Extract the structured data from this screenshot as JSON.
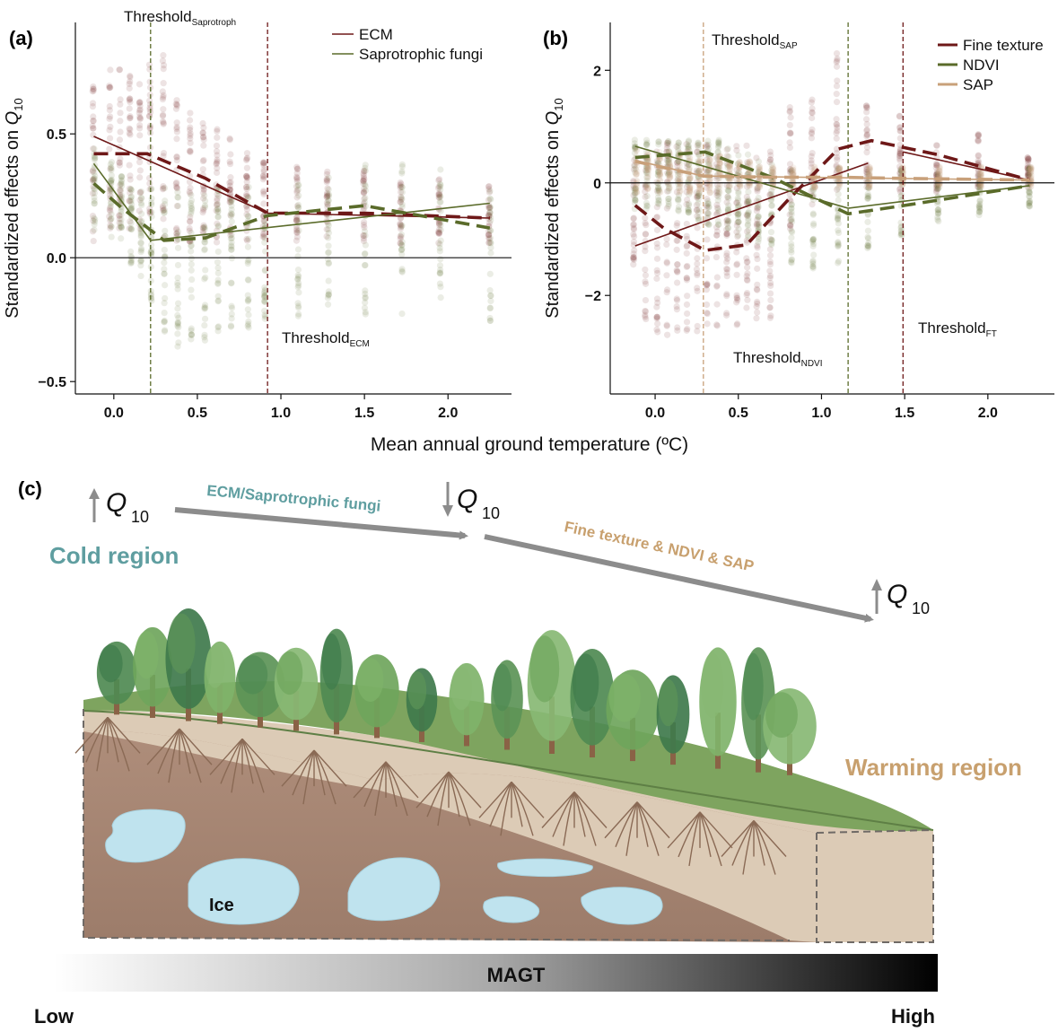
{
  "colors": {
    "ecm": "#6e1818",
    "sap_fungi": "#5a6b2a",
    "fine_texture": "#6e1818",
    "ndvi": "#5a6b2a",
    "sap": "#c8a07a",
    "teal_text": "#5f9ea0",
    "tan_text": "#c8a06e",
    "arrow_gray": "#8c8c8c",
    "soil_brown": "#a98a77",
    "topsoil": "#dccbb6",
    "ice": "#bfe3ee",
    "grass": "#79a05e"
  },
  "shared": {
    "xlabel": "Mean annual ground temperature (ºC)"
  },
  "chart_data": [
    {
      "panel": "(a)",
      "type": "scatter",
      "ylabel_main": "Standardized effects on ",
      "ylabel_q": "Q",
      "ylabel_sub": "10",
      "xlim": [
        -0.23,
        2.38
      ],
      "ylim": [
        -0.55,
        0.95
      ],
      "xticks": [
        "0.0",
        "0.5",
        "1.0",
        "1.5",
        "2.0"
      ],
      "xtick_values": [
        0,
        0.5,
        1.0,
        1.5,
        2.0
      ],
      "yticks": [
        "0.5",
        "0.0",
        "−0.5"
      ],
      "ytick_values": [
        0.5,
        0,
        -0.5
      ],
      "legend": [
        {
          "label": "ECM",
          "color_key": "ecm"
        },
        {
          "label": "Saprotrophic fungi",
          "color_key": "sap_fungi"
        }
      ],
      "thresholds": [
        {
          "x": 0.22,
          "label": "Threshold",
          "sub": "Saprotroph",
          "color_key": "sap_fungi"
        },
        {
          "x": 0.92,
          "label": "Threshold",
          "sub": "ECM",
          "color_key": "ecm"
        }
      ],
      "x_columns": [
        -0.12,
        -0.02,
        0.04,
        0.1,
        0.16,
        0.22,
        0.3,
        0.38,
        0.46,
        0.54,
        0.62,
        0.7,
        0.8,
        0.9,
        1.1,
        1.28,
        1.5,
        1.72,
        1.95,
        2.25
      ],
      "column_ranges": {
        "ecm": [
          [
            0.05,
            0.75
          ],
          [
            0.1,
            0.78
          ],
          [
            0.1,
            0.78
          ],
          [
            0.1,
            0.78
          ],
          [
            0.1,
            0.72
          ],
          [
            0.1,
            0.8
          ],
          [
            0.05,
            0.85
          ],
          [
            0.05,
            0.68
          ],
          [
            0.05,
            0.62
          ],
          [
            0.05,
            0.58
          ],
          [
            0.05,
            0.55
          ],
          [
            0.05,
            0.5
          ],
          [
            0.05,
            0.45
          ],
          [
            0.05,
            0.4
          ],
          [
            0.05,
            0.38
          ],
          [
            0.05,
            0.38
          ],
          [
            0.05,
            0.36
          ],
          [
            0.05,
            0.34
          ],
          [
            0.05,
            0.34
          ],
          [
            0.05,
            0.3
          ]
        ],
        "sap_fungi": [
          [
            0.1,
            0.45
          ],
          [
            0.05,
            0.4
          ],
          [
            0.0,
            0.35
          ],
          [
            -0.05,
            0.3
          ],
          [
            -0.1,
            0.3
          ],
          [
            -0.2,
            0.3
          ],
          [
            -0.35,
            0.3
          ],
          [
            -0.38,
            0.3
          ],
          [
            -0.35,
            0.28
          ],
          [
            -0.35,
            0.3
          ],
          [
            -0.33,
            0.3
          ],
          [
            -0.3,
            0.3
          ],
          [
            -0.3,
            0.3
          ],
          [
            -0.28,
            0.3
          ],
          [
            -0.25,
            0.32
          ],
          [
            -0.25,
            0.35
          ],
          [
            -0.25,
            0.4
          ],
          [
            -0.25,
            0.4
          ],
          [
            -0.25,
            0.38
          ],
          [
            -0.28,
            0.3
          ]
        ]
      },
      "series": [
        {
          "name": "ECM",
          "kind": "solid",
          "color_key": "ecm",
          "x": [
            -0.12,
            0.92,
            2.25
          ],
          "y": [
            0.49,
            0.18,
            0.16
          ]
        },
        {
          "name": "ECM",
          "kind": "dashed",
          "color_key": "ecm",
          "x": [
            -0.12,
            0.2,
            0.55,
            0.92,
            1.5,
            2.25
          ],
          "y": [
            0.42,
            0.42,
            0.32,
            0.18,
            0.18,
            0.16
          ]
        },
        {
          "name": "Saprotrophic fungi",
          "kind": "solid",
          "color_key": "sap_fungi",
          "x": [
            -0.12,
            0.22,
            2.25
          ],
          "y": [
            0.38,
            0.07,
            0.22
          ]
        },
        {
          "name": "Saprotrophic fungi",
          "kind": "dashed",
          "color_key": "sap_fungi",
          "x": [
            -0.12,
            0.05,
            0.3,
            0.55,
            0.92,
            1.5,
            2.25
          ],
          "y": [
            0.3,
            0.2,
            0.07,
            0.08,
            0.17,
            0.21,
            0.12
          ]
        }
      ]
    },
    {
      "panel": "(b)",
      "type": "scatter",
      "ylabel_main": "Standardized effects on ",
      "ylabel_q": "Q",
      "ylabel_sub": "10",
      "xlim": [
        -0.27,
        2.4
      ],
      "ylim": [
        -3.75,
        2.85
      ],
      "xticks": [
        "0.0",
        "0.5",
        "1.0",
        "1.5",
        "2.0"
      ],
      "xtick_values": [
        0,
        0.5,
        1.0,
        1.5,
        2.0
      ],
      "yticks": [
        "2",
        "0",
        "−2"
      ],
      "ytick_values": [
        2,
        0,
        -2
      ],
      "legend": [
        {
          "label": "Fine texture",
          "color_key": "fine_texture"
        },
        {
          "label": "NDVI",
          "color_key": "ndvi"
        },
        {
          "label": "SAP",
          "color_key": "sap"
        }
      ],
      "thresholds": [
        {
          "x": 0.29,
          "label": "Threshold",
          "sub": "SAP",
          "color_key": "sap"
        },
        {
          "x": 1.16,
          "label": "Threshold",
          "sub": "NDVI",
          "color_key": "ndvi"
        },
        {
          "x": 1.49,
          "label": "Threshold",
          "sub": "FT",
          "color_key": "fine_texture"
        }
      ],
      "x_columns": [
        -0.12,
        -0.05,
        0.02,
        0.08,
        0.14,
        0.2,
        0.26,
        0.32,
        0.38,
        0.44,
        0.5,
        0.56,
        0.62,
        0.7,
        0.82,
        0.95,
        1.1,
        1.28,
        1.48,
        1.7,
        1.95,
        2.25
      ],
      "column_ranges": {
        "fine_texture": [
          [
            -1.5,
            0.5
          ],
          [
            -2.5,
            0.6
          ],
          [
            -3.0,
            0.8
          ],
          [
            -2.8,
            0.8
          ],
          [
            -2.8,
            0.8
          ],
          [
            -2.8,
            0.8
          ],
          [
            -2.8,
            0.8
          ],
          [
            -2.8,
            0.8
          ],
          [
            -2.7,
            0.8
          ],
          [
            -2.7,
            0.8
          ],
          [
            -2.7,
            0.8
          ],
          [
            -2.6,
            0.8
          ],
          [
            -2.5,
            0.8
          ],
          [
            -2.5,
            0.8
          ],
          [
            -1.0,
            1.5
          ],
          [
            -0.6,
            1.8
          ],
          [
            -0.2,
            2.4
          ],
          [
            -0.2,
            1.5
          ],
          [
            -0.2,
            1.3
          ],
          [
            -0.2,
            0.8
          ],
          [
            -0.1,
            0.9
          ],
          [
            -0.1,
            0.5
          ]
        ],
        "ndvi": [
          [
            -0.5,
            0.8
          ],
          [
            -0.5,
            0.8
          ],
          [
            -0.5,
            0.8
          ],
          [
            -0.6,
            0.8
          ],
          [
            -0.6,
            0.8
          ],
          [
            -0.6,
            0.8
          ],
          [
            -0.7,
            0.8
          ],
          [
            -0.8,
            0.8
          ],
          [
            -0.8,
            0.8
          ],
          [
            -0.9,
            0.7
          ],
          [
            -1.0,
            0.6
          ],
          [
            -1.0,
            0.6
          ],
          [
            -1.1,
            0.5
          ],
          [
            -1.2,
            0.4
          ],
          [
            -1.5,
            0.3
          ],
          [
            -1.6,
            0.2
          ],
          [
            -1.5,
            0.3
          ],
          [
            -1.3,
            0.3
          ],
          [
            -1.0,
            0.3
          ],
          [
            -0.8,
            0.2
          ],
          [
            -0.6,
            0.2
          ],
          [
            -0.5,
            0.3
          ]
        ],
        "sap": [
          [
            -0.2,
            0.6
          ],
          [
            -0.2,
            0.6
          ],
          [
            -0.2,
            0.6
          ],
          [
            -0.2,
            0.6
          ],
          [
            -0.2,
            0.6
          ],
          [
            -0.2,
            0.6
          ],
          [
            -0.2,
            0.5
          ],
          [
            -0.2,
            0.5
          ],
          [
            -0.2,
            0.5
          ],
          [
            -0.1,
            0.4
          ],
          [
            -0.1,
            0.4
          ],
          [
            -0.1,
            0.4
          ],
          [
            -0.1,
            0.3
          ],
          [
            -0.1,
            0.3
          ],
          [
            -0.1,
            0.3
          ],
          [
            -0.1,
            0.3
          ],
          [
            -0.1,
            0.3
          ],
          [
            -0.1,
            0.3
          ],
          [
            -0.1,
            0.3
          ],
          [
            -0.1,
            0.3
          ],
          [
            -0.1,
            0.3
          ],
          [
            -0.1,
            0.3
          ]
        ]
      },
      "series": [
        {
          "name": "Fine texture",
          "kind": "solid",
          "color_key": "fine_texture",
          "x": [
            -0.12,
            1.28
          ],
          "y": [
            -1.12,
            0.35
          ]
        },
        {
          "name": "Fine texture",
          "kind": "solid",
          "color_key": "fine_texture",
          "x": [
            1.49,
            2.25
          ],
          "y": [
            0.55,
            0.05
          ]
        },
        {
          "name": "Fine texture",
          "kind": "dashed",
          "color_key": "fine_texture",
          "x": [
            -0.12,
            0.05,
            0.3,
            0.55,
            0.8,
            1.1,
            1.3,
            1.7,
            2.25
          ],
          "y": [
            -0.4,
            -0.8,
            -1.2,
            -1.1,
            -0.3,
            0.6,
            0.75,
            0.5,
            0.05
          ]
        },
        {
          "name": "NDVI",
          "kind": "solid",
          "color_key": "ndvi",
          "x": [
            -0.12,
            1.16,
            2.25
          ],
          "y": [
            0.65,
            -0.45,
            -0.05
          ]
        },
        {
          "name": "NDVI",
          "kind": "dashed",
          "color_key": "ndvi",
          "x": [
            -0.12,
            0.3,
            0.7,
            1.16,
            1.5,
            2.25
          ],
          "y": [
            0.45,
            0.55,
            0.1,
            -0.55,
            -0.4,
            -0.05
          ]
        },
        {
          "name": "SAP",
          "kind": "solid",
          "color_key": "sap",
          "x": [
            -0.12,
            0.29,
            2.25
          ],
          "y": [
            0.4,
            0.12,
            0.05
          ]
        },
        {
          "name": "SAP",
          "kind": "dashed",
          "color_key": "sap",
          "x": [
            -0.12,
            0.29,
            0.7,
            1.1,
            1.5,
            2.25
          ],
          "y": [
            0.38,
            0.12,
            0.1,
            0.1,
            0.08,
            0.05
          ]
        }
      ]
    }
  ],
  "panel_c": {
    "label": "(c)",
    "q_symbol": "Q",
    "q_sub": "10",
    "arrow_label_1": "ECM/Saprotrophic fungi",
    "arrow_label_2": "Fine texture & NDVI & SAP",
    "cold_region": "Cold region",
    "warming_region": "Warming region",
    "ice_label": "Ice",
    "bar_label": "MAGT",
    "low_label": "Low",
    "high_label": "High"
  }
}
